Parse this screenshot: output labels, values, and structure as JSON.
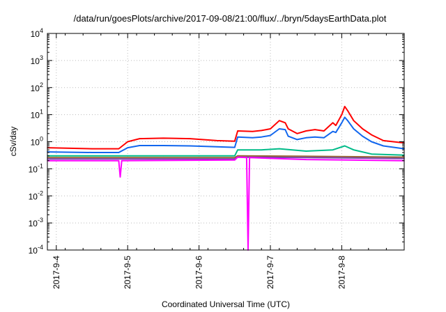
{
  "chart_data": {
    "type": "line",
    "title": "/data/run/goesPlots/archive/2017-09-08/21:00/flux/../bryn/5daysEarthData.plot",
    "xlabel": "Coordinated Universal Time (UTC)",
    "ylabel": "cSv/day",
    "yscale": "log",
    "ylim": [
      0.0001,
      10000
    ],
    "xlim": [
      "2017-09-03T21:00",
      "2017-09-08T21:00"
    ],
    "grid": true,
    "legend": "none",
    "y_ticks": [
      {
        "base": "10",
        "exp": "-4"
      },
      {
        "base": "10",
        "exp": "-3"
      },
      {
        "base": "10",
        "exp": "-2"
      },
      {
        "base": "10",
        "exp": "-1"
      },
      {
        "base": "10",
        "exp": "0"
      },
      {
        "base": "10",
        "exp": "1"
      },
      {
        "base": "10",
        "exp": "2"
      },
      {
        "base": "10",
        "exp": "3"
      },
      {
        "base": "10",
        "exp": "4"
      }
    ],
    "x_ticks": [
      {
        "label": "2017-9-4",
        "t": "2017-09-04T00:00"
      },
      {
        "label": "2017-9-5",
        "t": "2017-09-05T00:00"
      },
      {
        "label": "2017-9-6",
        "t": "2017-09-06T00:00"
      },
      {
        "label": "2017-9-7",
        "t": "2017-09-07T00:00"
      },
      {
        "label": "2017-9-8",
        "t": "2017-09-08T00:00"
      }
    ],
    "series": [
      {
        "color": "#ff0000",
        "points": [
          [
            "2017-09-03T21:00",
            0.6
          ],
          [
            "2017-09-04T12:00",
            0.55
          ],
          [
            "2017-09-04T21:00",
            0.55
          ],
          [
            "2017-09-05T00:00",
            1.0
          ],
          [
            "2017-09-05T04:00",
            1.3
          ],
          [
            "2017-09-05T12:00",
            1.35
          ],
          [
            "2017-09-05T21:00",
            1.3
          ],
          [
            "2017-09-06T06:00",
            1.1
          ],
          [
            "2017-09-06T12:00",
            1.05
          ],
          [
            "2017-09-06T13:00",
            2.5
          ],
          [
            "2017-09-06T18:00",
            2.4
          ],
          [
            "2017-09-06T21:00",
            2.6
          ],
          [
            "2017-09-07T00:00",
            3.0
          ],
          [
            "2017-09-07T03:00",
            6.0
          ],
          [
            "2017-09-07T05:00",
            5.0
          ],
          [
            "2017-09-07T06:00",
            3.0
          ],
          [
            "2017-09-07T09:00",
            2.0
          ],
          [
            "2017-09-07T12:00",
            2.5
          ],
          [
            "2017-09-07T15:00",
            2.8
          ],
          [
            "2017-09-07T18:00",
            2.5
          ],
          [
            "2017-09-07T21:00",
            5.0
          ],
          [
            "2017-09-07T22:00",
            4.0
          ],
          [
            "2017-09-08T00:00",
            10.0
          ],
          [
            "2017-09-08T01:00",
            20.0
          ],
          [
            "2017-09-08T02:00",
            14.0
          ],
          [
            "2017-09-08T04:00",
            6.0
          ],
          [
            "2017-09-08T07:00",
            3.0
          ],
          [
            "2017-09-08T10:00",
            1.8
          ],
          [
            "2017-09-08T14:00",
            1.1
          ],
          [
            "2017-09-08T21:00",
            0.9
          ]
        ]
      },
      {
        "color": "#1166ee",
        "points": [
          [
            "2017-09-03T21:00",
            0.42
          ],
          [
            "2017-09-04T12:00",
            0.4
          ],
          [
            "2017-09-04T21:00",
            0.4
          ],
          [
            "2017-09-05T00:00",
            0.6
          ],
          [
            "2017-09-05T04:00",
            0.72
          ],
          [
            "2017-09-05T12:00",
            0.72
          ],
          [
            "2017-09-05T21:00",
            0.7
          ],
          [
            "2017-09-06T06:00",
            0.65
          ],
          [
            "2017-09-06T12:00",
            0.62
          ],
          [
            "2017-09-06T13:00",
            1.5
          ],
          [
            "2017-09-06T18:00",
            1.4
          ],
          [
            "2017-09-06T21:00",
            1.5
          ],
          [
            "2017-09-07T00:00",
            1.7
          ],
          [
            "2017-09-07T03:00",
            3.0
          ],
          [
            "2017-09-07T05:00",
            2.8
          ],
          [
            "2017-09-07T06:00",
            1.6
          ],
          [
            "2017-09-07T09:00",
            1.2
          ],
          [
            "2017-09-07T12:00",
            1.4
          ],
          [
            "2017-09-07T15:00",
            1.5
          ],
          [
            "2017-09-07T18:00",
            1.4
          ],
          [
            "2017-09-07T21:00",
            2.4
          ],
          [
            "2017-09-07T22:00",
            2.2
          ],
          [
            "2017-09-08T00:00",
            5.0
          ],
          [
            "2017-09-08T01:00",
            8.0
          ],
          [
            "2017-09-08T02:00",
            6.0
          ],
          [
            "2017-09-08T04:00",
            3.0
          ],
          [
            "2017-09-08T07:00",
            1.6
          ],
          [
            "2017-09-08T10:00",
            1.0
          ],
          [
            "2017-09-08T14:00",
            0.7
          ],
          [
            "2017-09-08T21:00",
            0.55
          ]
        ]
      },
      {
        "color": "#00bb88",
        "points": [
          [
            "2017-09-03T21:00",
            0.3
          ],
          [
            "2017-09-04T21:00",
            0.3
          ],
          [
            "2017-09-05T12:00",
            0.3
          ],
          [
            "2017-09-06T12:00",
            0.3
          ],
          [
            "2017-09-06T13:00",
            0.5
          ],
          [
            "2017-09-06T21:00",
            0.5
          ],
          [
            "2017-09-07T03:00",
            0.55
          ],
          [
            "2017-09-07T12:00",
            0.45
          ],
          [
            "2017-09-07T21:00",
            0.5
          ],
          [
            "2017-09-08T01:00",
            0.7
          ],
          [
            "2017-09-08T04:00",
            0.5
          ],
          [
            "2017-09-08T10:00",
            0.35
          ],
          [
            "2017-09-08T21:00",
            0.32
          ]
        ]
      },
      {
        "color": "#996633",
        "points": [
          [
            "2017-09-03T21:00",
            0.26
          ],
          [
            "2017-09-06T12:00",
            0.26
          ],
          [
            "2017-09-06T13:00",
            0.3
          ],
          [
            "2017-09-07T12:00",
            0.29
          ],
          [
            "2017-09-08T21:00",
            0.27
          ]
        ]
      },
      {
        "color": "#7744aa",
        "points": [
          [
            "2017-09-03T21:00",
            0.23
          ],
          [
            "2017-09-06T12:00",
            0.23
          ],
          [
            "2017-09-06T13:00",
            0.27
          ],
          [
            "2017-09-07T12:00",
            0.26
          ],
          [
            "2017-09-08T21:00",
            0.24
          ]
        ]
      },
      {
        "color": "#ff00ff",
        "points": [
          [
            "2017-09-03T21:00",
            0.2
          ],
          [
            "2017-09-04T21:00",
            0.2
          ],
          [
            "2017-09-04T21:30",
            0.05
          ],
          [
            "2017-09-04T22:00",
            0.2
          ],
          [
            "2017-09-06T12:00",
            0.21
          ],
          [
            "2017-09-06T13:00",
            0.27
          ],
          [
            "2017-09-06T16:00",
            0.26
          ],
          [
            "2017-09-06T16:30",
            0.0001
          ],
          [
            "2017-09-06T17:00",
            0.26
          ],
          [
            "2017-09-06T21:00",
            0.25
          ],
          [
            "2017-09-07T12:00",
            0.22
          ],
          [
            "2017-09-08T21:00",
            0.2
          ]
        ]
      }
    ]
  }
}
